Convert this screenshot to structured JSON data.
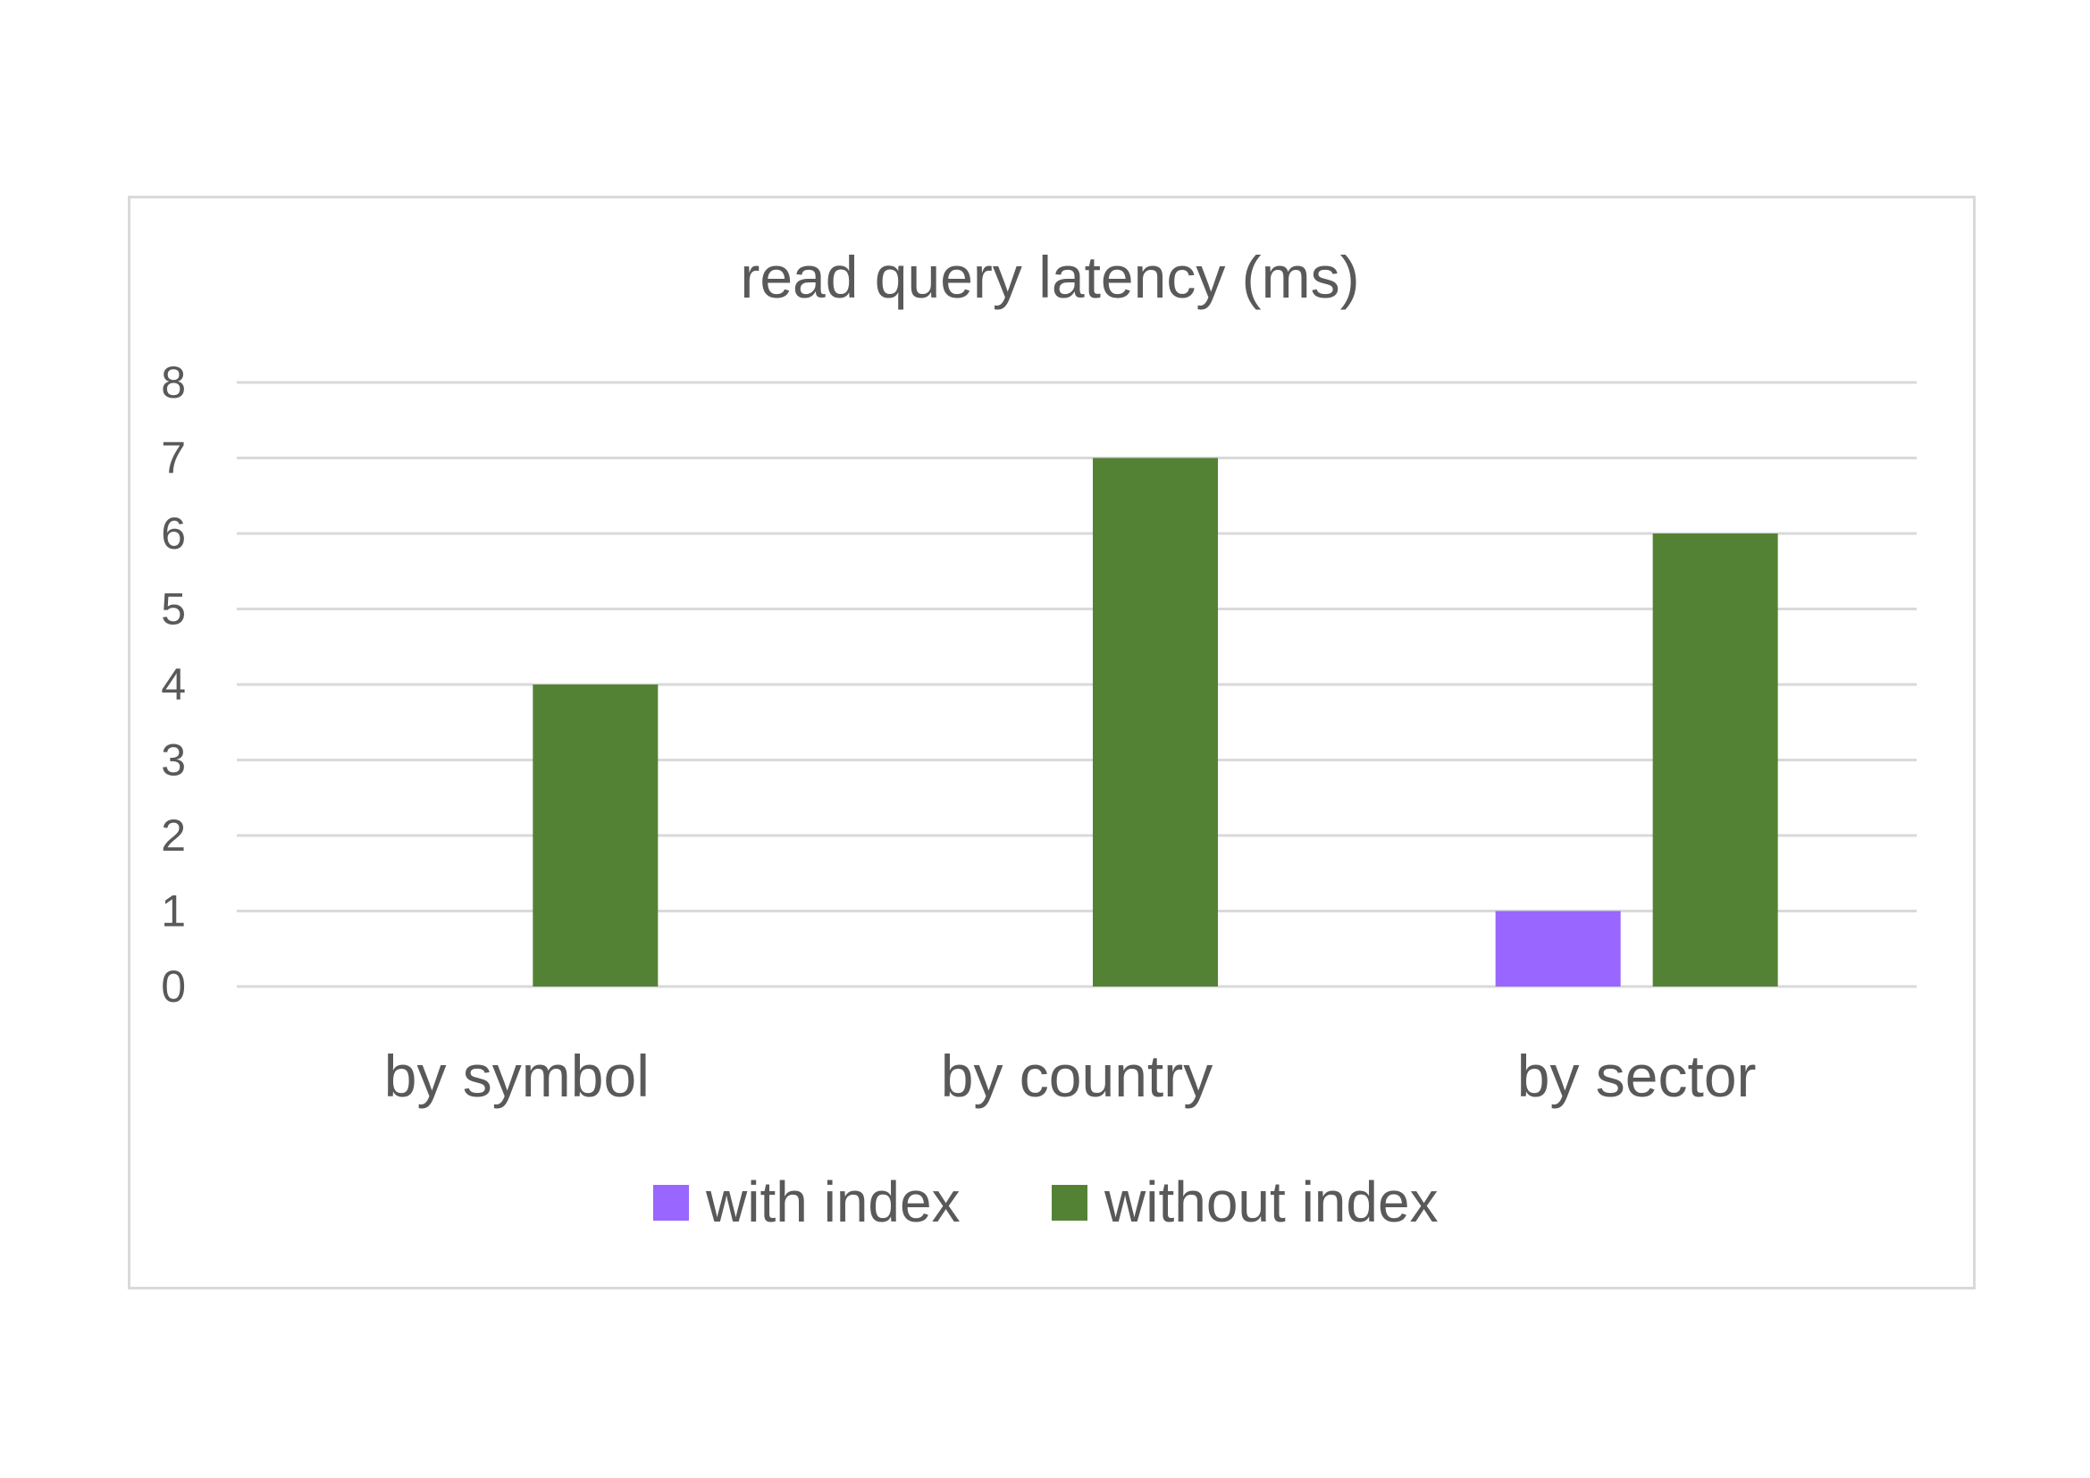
{
  "chart_data": {
    "type": "bar",
    "title": "read query latency (ms)",
    "xlabel": "",
    "ylabel": "",
    "categories": [
      "by symbol",
      "by country",
      "by sector"
    ],
    "series": [
      {
        "name": "with index",
        "values": [
          0,
          0,
          1
        ],
        "color": "#9966ff"
      },
      {
        "name": "without index",
        "values": [
          4,
          7,
          6
        ],
        "color": "#548235"
      }
    ],
    "ylim": [
      0,
      8
    ],
    "yticks": [
      "0",
      "1",
      "2",
      "3",
      "4",
      "5",
      "6",
      "7",
      "8"
    ],
    "grid": true,
    "legend_position": "bottom"
  }
}
